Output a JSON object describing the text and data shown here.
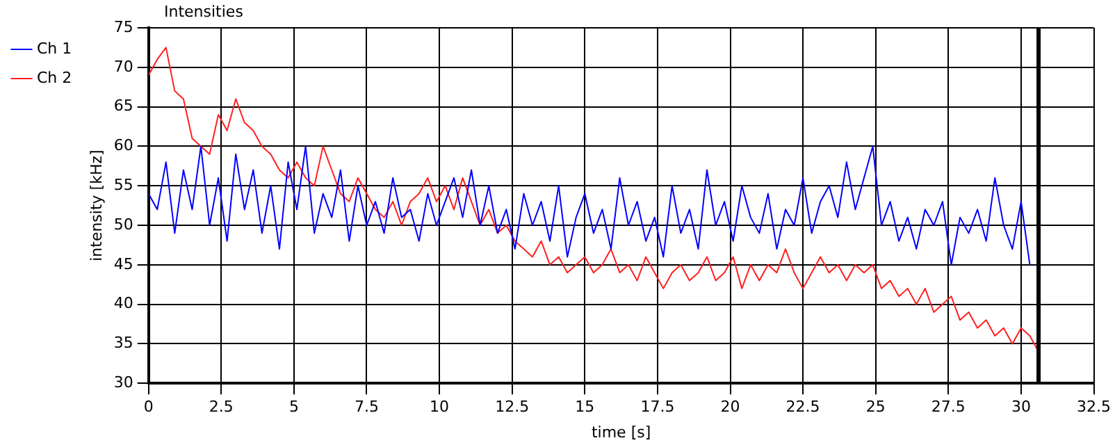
{
  "chart_data": {
    "type": "line",
    "title": "Intensities",
    "xlabel": "time [s]",
    "ylabel": "intensity [kHz]",
    "x": [
      0,
      0.3,
      0.6,
      0.9,
      1.2,
      1.5,
      1.8,
      2.1,
      2.4,
      2.7,
      3,
      3.3,
      3.6,
      3.9,
      4.2,
      4.5,
      4.8,
      5.1,
      5.4,
      5.7,
      6,
      6.3,
      6.6,
      6.9,
      7.2,
      7.5,
      7.8,
      8.1,
      8.4,
      8.7,
      9,
      9.3,
      9.6,
      9.9,
      10.2,
      10.5,
      10.8,
      11.1,
      11.4,
      11.7,
      12,
      12.3,
      12.6,
      12.9,
      13.2,
      13.5,
      13.8,
      14.1,
      14.4,
      14.7,
      15,
      15.3,
      15.6,
      15.9,
      16.2,
      16.5,
      16.8,
      17.1,
      17.4,
      17.7,
      18,
      18.3,
      18.6,
      18.9,
      19.2,
      19.5,
      19.8,
      20.1,
      20.4,
      20.7,
      21,
      21.3,
      21.6,
      21.9,
      22.2,
      22.5,
      22.8,
      23.1,
      23.4,
      23.7,
      24,
      24.3,
      24.6,
      24.9,
      25.2,
      25.5,
      25.8,
      26.1,
      26.4,
      26.7,
      27,
      27.3,
      27.6,
      27.9,
      28.2,
      28.5,
      28.8,
      29.1,
      29.4,
      29.7,
      30,
      30.3,
      30.6
    ],
    "series": [
      {
        "name": "Ch 1",
        "color": "#0000ff",
        "values": [
          54,
          52,
          58,
          49,
          57,
          52,
          60,
          50,
          56,
          48,
          59,
          52,
          57,
          49,
          55,
          47,
          58,
          52,
          60,
          49,
          54,
          51,
          57,
          48,
          55,
          50,
          53,
          49,
          56,
          51,
          52,
          48,
          54,
          50,
          53,
          56,
          51,
          57,
          50,
          55,
          49,
          52,
          47,
          54,
          50,
          53,
          48,
          55,
          46,
          51,
          54,
          49,
          52,
          47,
          56,
          50,
          53,
          48,
          51,
          46,
          55,
          49,
          52,
          47,
          57,
          50,
          53,
          48,
          55,
          51,
          49,
          54,
          47,
          52,
          50,
          56,
          49,
          53,
          55,
          51,
          58,
          52,
          56,
          60,
          50,
          53,
          48,
          51,
          47,
          52,
          50,
          53,
          45,
          51,
          49,
          52,
          48,
          56,
          50,
          47,
          53,
          45,
          null
        ]
      },
      {
        "name": "Ch 2",
        "color": "#ff2020",
        "values": [
          69,
          71,
          72.5,
          67,
          66,
          61,
          60,
          59,
          64,
          62,
          66,
          63,
          62,
          60,
          59,
          57,
          56,
          58,
          56,
          55,
          60,
          57,
          54,
          53,
          56,
          54,
          52,
          51,
          53,
          50,
          53,
          54,
          56,
          53,
          55,
          52,
          56,
          53,
          50,
          52,
          49,
          50,
          48,
          47,
          46,
          48,
          45,
          46,
          44,
          45,
          46,
          44,
          45,
          47,
          44,
          45,
          43,
          46,
          44,
          42,
          44,
          45,
          43,
          44,
          46,
          43,
          44,
          46,
          42,
          45,
          43,
          45,
          44,
          47,
          44,
          42,
          44,
          46,
          44,
          45,
          43,
          45,
          44,
          45,
          42,
          43,
          41,
          42,
          40,
          42,
          39,
          40,
          41,
          38,
          39,
          37,
          38,
          36,
          37,
          35,
          37,
          36,
          34
        ]
      }
    ],
    "xlim": [
      0,
      32.5
    ],
    "xticks": [
      0,
      2.5,
      5,
      7.5,
      10,
      12.5,
      15,
      17.5,
      20,
      22.5,
      25,
      27.5,
      30,
      32.5
    ],
    "ylim": [
      30,
      75
    ],
    "yticks": [
      30,
      35,
      40,
      45,
      50,
      55,
      60,
      65,
      70,
      75
    ],
    "grid": true,
    "legend": "top left",
    "marker": "none",
    "line_style": "solid",
    "ref_lines": [
      {
        "axis": "x",
        "value": 30.6,
        "color": "#000000"
      }
    ]
  }
}
